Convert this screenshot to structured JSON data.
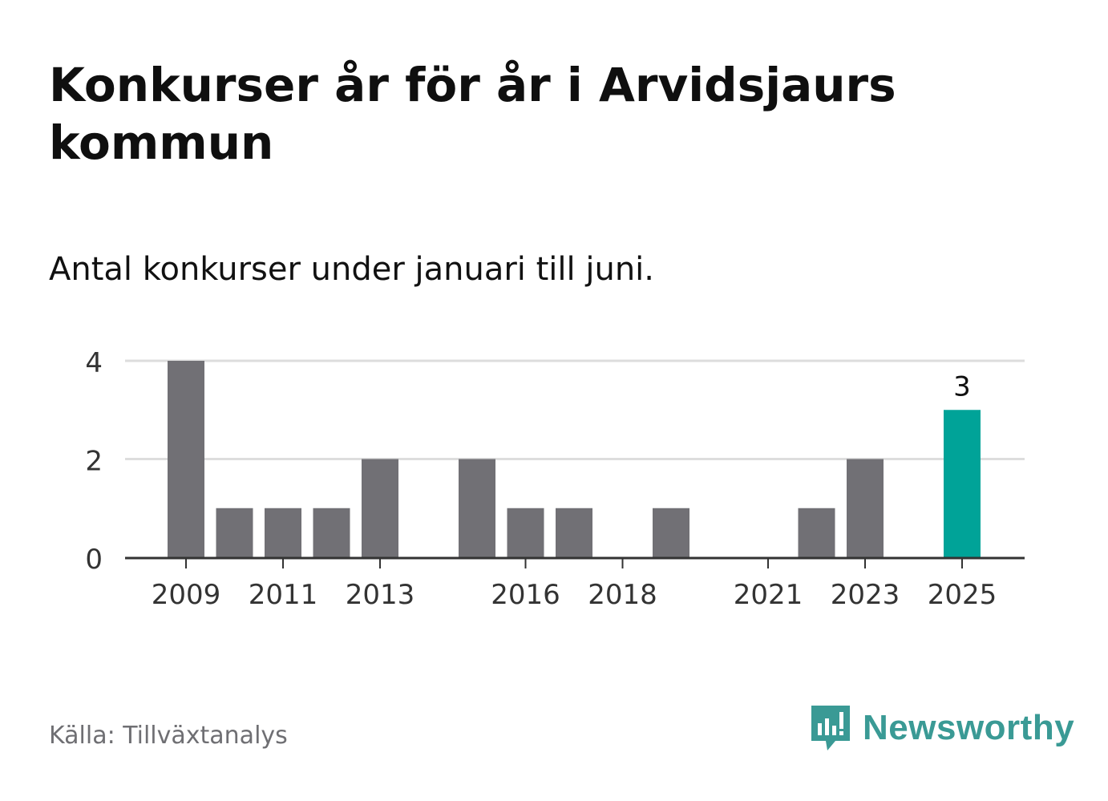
{
  "title": "Konkurser år för år i Arvidsjaurs kommun",
  "subtitle": "Antal konkurser under januari till juni.",
  "source": "Källa: Tillväxtanalys",
  "brand": "Newsworthy",
  "colors": {
    "bar": "#717075",
    "highlight": "#00a398",
    "grid": "#dddddd",
    "axis": "#333333",
    "brand": "#3a9a95"
  },
  "chart_data": {
    "type": "bar",
    "categories": [
      "2009",
      "2010",
      "2011",
      "2012",
      "2013",
      "2014",
      "2015",
      "2016",
      "2017",
      "2018",
      "2019",
      "2020",
      "2021",
      "2022",
      "2023",
      "2024",
      "2025"
    ],
    "values": [
      4,
      1,
      1,
      1,
      2,
      0,
      2,
      1,
      1,
      0,
      1,
      0,
      0,
      1,
      2,
      0,
      3
    ],
    "x_tick_labels": [
      "2009",
      "2011",
      "2013",
      "2016",
      "2018",
      "2021",
      "2023",
      "2025"
    ],
    "y_ticks": [
      0,
      2,
      4
    ],
    "ylim": [
      0,
      4
    ],
    "highlight": "2025",
    "data_labels": [
      {
        "category": "2025",
        "value": 3,
        "text": "3"
      }
    ],
    "grid": true,
    "xlabel": "",
    "ylabel": ""
  }
}
